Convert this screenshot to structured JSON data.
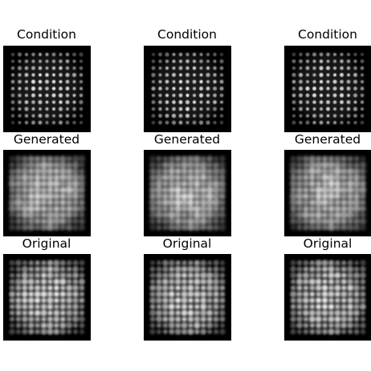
{
  "figure": {
    "rows": [
      {
        "kind": "condition",
        "panels": [
          {
            "title": "Condition"
          },
          {
            "title": "Condition"
          },
          {
            "title": "Condition"
          }
        ]
      },
      {
        "kind": "generated",
        "panels": [
          {
            "title": "Generated"
          },
          {
            "title": "Generated"
          },
          {
            "title": "Generated"
          }
        ]
      },
      {
        "kind": "original",
        "panels": [
          {
            "title": "Original"
          },
          {
            "title": "Original"
          },
          {
            "title": "Original"
          }
        ]
      }
    ],
    "image_description": "grayscale speckle grid patterns on black background",
    "colors": {
      "background": "#ffffff",
      "image_background": "#000000",
      "spot": "#ffffff",
      "title_text": "#000000"
    }
  }
}
